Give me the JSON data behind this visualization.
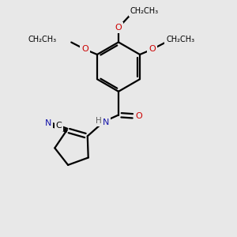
{
  "bg_color": "#e8e8e8",
  "bond_color": "#000000",
  "bond_width": 1.6,
  "atom_colors": {
    "O": "#cc0000",
    "N": "#1414aa",
    "C": "#000000",
    "H": "#606060"
  },
  "font_size": 8.0,
  "ethyl_font_size": 7.0,
  "fig_size": [
    3.0,
    3.0
  ],
  "dpi": 100,
  "xlim": [
    -1.5,
    8.5
  ],
  "ylim": [
    -1.0,
    9.0
  ]
}
